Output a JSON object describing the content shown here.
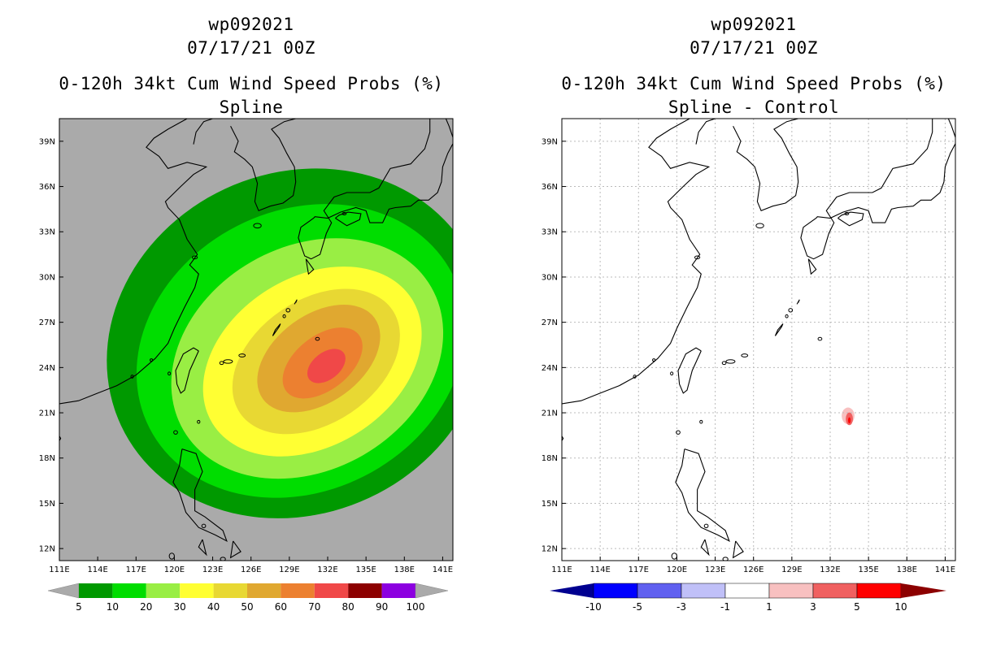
{
  "panels": [
    {
      "title_line1": "wp092021",
      "title_line2": "07/17/21 00Z",
      "title_line3": "0-120h 34kt Cum Wind Speed Probs (%)",
      "title_line4": "Spline",
      "background": "#aaaaaa",
      "chart_data": {
        "type": "heatmap",
        "title": "0-120h 34kt Cum Wind Speed Probs (%)",
        "subtitle": "Spline",
        "x_ticks": [
          "111E",
          "114E",
          "117E",
          "120E",
          "123E",
          "126E",
          "129E",
          "132E",
          "135E",
          "138E",
          "141E"
        ],
        "y_ticks": [
          "39N",
          "36N",
          "33N",
          "30N",
          "27N",
          "24N",
          "21N",
          "18N",
          "15N",
          "12N"
        ],
        "xlim": [
          111,
          141.8
        ],
        "ylim": [
          11.2,
          40.5
        ],
        "contours": [
          {
            "level": 5,
            "lon": 129.6,
            "lat": 25.6,
            "rx": 15.2,
            "ry": 11.3,
            "rot": -25
          },
          {
            "level": 10,
            "lon": 129.9,
            "lat": 25.1,
            "rx": 13.3,
            "ry": 9.3,
            "rot": -27
          },
          {
            "level": 20,
            "lon": 130.4,
            "lat": 24.6,
            "rx": 11.2,
            "ry": 7.4,
            "rot": -30
          },
          {
            "level": 30,
            "lon": 130.8,
            "lat": 24.4,
            "rx": 9.2,
            "ry": 5.6,
            "rot": -32
          },
          {
            "level": 40,
            "lon": 131.1,
            "lat": 24.4,
            "rx": 7.2,
            "ry": 4.1,
            "rot": -34
          },
          {
            "level": 50,
            "lon": 131.3,
            "lat": 24.6,
            "rx": 5.4,
            "ry": 2.9,
            "rot": -36
          },
          {
            "level": 60,
            "lon": 131.6,
            "lat": 24.3,
            "rx": 3.6,
            "ry": 1.8,
            "rot": -38
          },
          {
            "level": 70,
            "lon": 131.9,
            "lat": 24.1,
            "rx": 1.7,
            "ry": 0.9,
            "rot": -38
          }
        ],
        "colorbar": {
          "labels": [
            "5",
            "10",
            "20",
            "30",
            "40",
            "50",
            "60",
            "70",
            "80",
            "90",
            "100"
          ],
          "colors": [
            "#009900",
            "#00dd00",
            "#99ee44",
            "#ffff33",
            "#e8d833",
            "#e0a830",
            "#ec8030",
            "#f04848",
            "#8c0000",
            "#8c00e0"
          ]
        }
      }
    },
    {
      "title_line1": "wp092021",
      "title_line2": "07/17/21 00Z",
      "title_line3": "0-120h 34kt Cum Wind Speed Probs (%)",
      "title_line4": "Spline - Control",
      "background": "#ffffff",
      "chart_data": {
        "type": "heatmap",
        "title": "0-120h 34kt Cum Wind Speed Probs (%)",
        "subtitle": "Spline - Control",
        "x_ticks": [
          "111E",
          "114E",
          "117E",
          "120E",
          "123E",
          "126E",
          "129E",
          "132E",
          "135E",
          "138E",
          "141E"
        ],
        "y_ticks": [
          "39N",
          "36N",
          "33N",
          "30N",
          "27N",
          "24N",
          "21N",
          "18N",
          "15N",
          "12N"
        ],
        "xlim": [
          111,
          141.8
        ],
        "ylim": [
          11.2,
          40.5
        ],
        "contours": [
          {
            "level": 1,
            "lon": 131.5,
            "lat": 26.3,
            "rx": 0.35,
            "ry": 0.3,
            "rot": 0
          },
          {
            "level": 1,
            "lon": 133.3,
            "lat": 20.9,
            "rx": 0.9,
            "ry": 0.8,
            "rot": 0
          },
          {
            "level": 3,
            "lon": 133.4,
            "lat": 20.8,
            "rx": 0.5,
            "ry": 0.55,
            "rot": 0
          },
          {
            "level": 5,
            "lon": 133.5,
            "lat": 20.6,
            "rx": 0.28,
            "ry": 0.42,
            "rot": 0
          },
          {
            "level": 10,
            "lon": 133.5,
            "lat": 20.5,
            "rx": 0.1,
            "ry": 0.2,
            "rot": 0
          }
        ],
        "colorbar": {
          "labels": [
            "-10",
            "-5",
            "-3",
            "-1",
            "1",
            "3",
            "5",
            "10"
          ],
          "colors": [
            "#000090",
            "#0000ff",
            "#6060f0",
            "#c0c0f8",
            "#ffffff",
            "#f8c0c0",
            "#f06060",
            "#ff0000",
            "#8c0000"
          ],
          "left_color": "#000090",
          "right_color": "#8c0000"
        }
      }
    }
  ]
}
